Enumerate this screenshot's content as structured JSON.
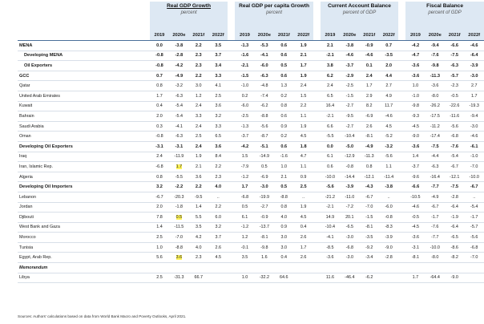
{
  "groups": [
    {
      "title": "Real GDP Growth",
      "subtitle": "percent"
    },
    {
      "title": "Real GDP per capita Growth",
      "subtitle": "percent"
    },
    {
      "title": "Current Account Balance",
      "subtitle": "percent of GDP"
    },
    {
      "title": "Fiscal Balance",
      "subtitle": "percent of GDP"
    }
  ],
  "years": [
    "2019",
    "2020e",
    "2021f",
    "2022f"
  ],
  "rows": [
    {
      "label": "MENA",
      "style": "bold",
      "cells": [
        "0.0",
        "-3.8",
        "2.2",
        "3.5",
        "-1.3",
        "-5.3",
        "0.6",
        "1.9",
        "2.1",
        "-3.8",
        "-0.9",
        "0.7",
        "-4.2",
        "-9.4",
        "-6.6",
        "-4.6"
      ]
    },
    {
      "label": "Developing MENA",
      "style": "bold-indent",
      "cells": [
        "-0.8",
        "-2.8",
        "2.3",
        "3.7",
        "-1.6",
        "-4.1",
        "0.6",
        "2.1",
        "-2.1",
        "-4.6",
        "-4.6",
        "-3.5",
        "-4.7",
        "-7.6",
        "-7.5",
        "-6.4"
      ]
    },
    {
      "label": "Oil Exporters",
      "style": "bold-indent",
      "cells": [
        "-0.8",
        "-4.2",
        "2.3",
        "3.4",
        "-2.1",
        "-6.0",
        "0.5",
        "1.7",
        "3.8",
        "-3.7",
        "0.1",
        "2.0",
        "-3.6",
        "-9.8",
        "-6.3",
        "-3.9"
      ]
    },
    {
      "label": "GCC",
      "style": "bold",
      "cells": [
        "0.7",
        "-4.9",
        "2.2",
        "3.3",
        "-1.5",
        "-6.3",
        "0.6",
        "1.9",
        "6.2",
        "-2.9",
        "2.4",
        "4.4",
        "-3.6",
        "-11.3",
        "-5.7",
        "-3.0"
      ]
    },
    {
      "label": "Qatar",
      "style": "",
      "cells": [
        "0.8",
        "-3.2",
        "3.0",
        "4.1",
        "-1.0",
        "-4.8",
        "1.3",
        "2.4",
        "2.4",
        "-2.5",
        "1.7",
        "2.7",
        "1.0",
        "-3.6",
        "-2.3",
        "2.7"
      ]
    },
    {
      "label": "United Arab Emirates",
      "style": "",
      "cells": [
        "1.7",
        "-6.3",
        "1.2",
        "2.5",
        "0.2",
        "-7.4",
        "0.2",
        "1.5",
        "6.5",
        "-1.5",
        "2.9",
        "4.9",
        "-1.0",
        "-8.0",
        "-0.5",
        "1.7"
      ]
    },
    {
      "label": "Kuwait",
      "style": "",
      "cells": [
        "0.4",
        "-5.4",
        "2.4",
        "3.6",
        "-6.0",
        "-6.2",
        "0.8",
        "2.2",
        "16.4",
        "-2.7",
        "8.2",
        "11.7",
        "-9.8",
        "-26.2",
        "-22.6",
        "-19.3"
      ]
    },
    {
      "label": "Bahrain",
      "style": "",
      "cells": [
        "2.0",
        "-5.4",
        "3.3",
        "3.2",
        "-2.5",
        "-8.8",
        "0.6",
        "1.1",
        "-2.1",
        "-9.5",
        "-6.9",
        "-4.6",
        "-9.3",
        "-17.5",
        "-11.6",
        "-9.4"
      ]
    },
    {
      "label": "Saudi Arabia",
      "style": "",
      "cells": [
        "0.3",
        "-4.1",
        "2.4",
        "3.3",
        "-1.3",
        "-5.6",
        "0.9",
        "1.9",
        "6.6",
        "-2.7",
        "2.6",
        "4.5",
        "-4.5",
        "-11.2",
        "-5.6",
        "-3.0"
      ]
    },
    {
      "label": "Oman",
      "style": "",
      "cells": [
        "-0.8",
        "-6.3",
        "2.5",
        "6.5",
        "-3.7",
        "-8.7",
        "0.2",
        "4.5",
        "-5.5",
        "-10.4",
        "-8.1",
        "-5.2",
        "-9.0",
        "-17.4",
        "-6.8",
        "-4.6"
      ]
    },
    {
      "label": "Developing Oil Exporters",
      "style": "bold",
      "cells": [
        "-3.1",
        "-3.1",
        "2.4",
        "3.6",
        "-4.2",
        "-5.1",
        "0.6",
        "1.8",
        "0.0",
        "-5.0",
        "-4.9",
        "-3.2",
        "-3.6",
        "-7.5",
        "-7.6",
        "-6.1"
      ]
    },
    {
      "label": "Iraq",
      "style": "",
      "cells": [
        "2.4",
        "-11.9",
        "1.9",
        "8.4",
        "1.5",
        "-14.9",
        "-1.6",
        "4.7",
        "6.1",
        "-12.9",
        "-11.3",
        "-5.6",
        "1.4",
        "-4.4",
        "-5.4",
        "-1.0"
      ]
    },
    {
      "label": "Iran, Islamic Rep.",
      "style": "",
      "cells": [
        "-6.8",
        "1.7",
        "2.1",
        "2.2",
        "-7.9",
        "0.5",
        "1.0",
        "1.1",
        "0.6",
        "-0.8",
        "0.8",
        "1.1",
        "-3.7",
        "-6.3",
        "-6.7",
        "-7.0"
      ]
    },
    {
      "label": "Algeria",
      "style": "",
      "cells": [
        "0.8",
        "-5.5",
        "3.6",
        "2.3",
        "-1.2",
        "-6.9",
        "2.1",
        "0.9",
        "-10.0",
        "-14.4",
        "-12.1",
        "-11.4",
        "-9.6",
        "-16.4",
        "-12.1",
        "-10.0"
      ]
    },
    {
      "label": "Developing Oil Importers",
      "style": "bold",
      "cells": [
        "3.2",
        "-2.2",
        "2.2",
        "4.0",
        "1.7",
        "-3.0",
        "0.5",
        "2.5",
        "-5.6",
        "-3.9",
        "-4.3",
        "-3.8",
        "-6.6",
        "-7.7",
        "-7.5",
        "-6.7"
      ]
    },
    {
      "label": "Lebanon",
      "style": "",
      "cells": [
        "-6.7",
        "-20.3",
        "-9.5",
        "..",
        "-6.8",
        "-19.9",
        "-8.8",
        "..",
        "-21.2",
        "-11.0",
        "-6.7",
        "..",
        "-10.5",
        "-4.9",
        "-2.8",
        ".."
      ]
    },
    {
      "label": "Jordan",
      "style": "",
      "cells": [
        "2.0",
        "-1.8",
        "1.4",
        "2.2",
        "0.5",
        "-2.7",
        "0.8",
        "1.9",
        "-2.1",
        "-7.2",
        "-7.0",
        "-6.0",
        "-4.6",
        "-6.7",
        "-6.4",
        "-5.4"
      ]
    },
    {
      "label": "Djibouti",
      "style": "",
      "cells": [
        "7.8",
        "0.5",
        "5.5",
        "6.0",
        "6.1",
        "-0.9",
        "4.0",
        "4.5",
        "14.9",
        "20.1",
        "-1.5",
        "-0.8",
        "-0.5",
        "-1.7",
        "-1.9",
        "-1.7"
      ]
    },
    {
      "label": "West Bank and Gaza",
      "style": "",
      "cells": [
        "1.4",
        "-11.5",
        "3.5",
        "3.2",
        "-1.2",
        "-13.7",
        "0.9",
        "0.4",
        "-10.4",
        "-6.5",
        "-8.1",
        "-8.3",
        "-4.5",
        "-7.6",
        "-6.4",
        "-5.7"
      ]
    },
    {
      "label": "Morocco",
      "style": "",
      "cells": [
        "2.5",
        "-7.0",
        "4.2",
        "3.7",
        "1.2",
        "-8.1",
        "3.0",
        "2.6",
        "-4.1",
        "-3.0",
        "-3.5",
        "-3.9",
        "-3.6",
        "-7.7",
        "-6.5",
        "-5.6"
      ]
    },
    {
      "label": "Tunisia",
      "style": "",
      "cells": [
        "1.0",
        "-8.8",
        "4.0",
        "2.6",
        "-0.1",
        "-9.8",
        "3.0",
        "1.7",
        "-8.5",
        "-6.8",
        "-9.2",
        "-9.0",
        "-3.1",
        "-10.0",
        "-8.6",
        "-6.8"
      ]
    },
    {
      "label": "Egypt, Arab Rep.",
      "style": "",
      "cells": [
        "5.6",
        "3.6",
        "2.3",
        "4.5",
        "3.5",
        "1.6",
        "0.4",
        "2.6",
        "-3.6",
        "-3.0",
        "-3.4",
        "-2.8",
        "-8.1",
        "-8.0",
        "-8.2",
        "-7.0"
      ]
    },
    {
      "label": "Memorandum",
      "style": "memo",
      "cells": [
        "",
        "",
        "",
        "",
        "",
        "",
        "",
        "",
        "",
        "",
        "",
        "",
        "",
        "",
        "",
        ""
      ]
    },
    {
      "label": "Libya",
      "style": "",
      "cells": [
        "2.5",
        "-31.3",
        "66.7",
        "",
        "1.0",
        "-32.2",
        "64.6",
        "",
        "11.6",
        "-46.4",
        "-6.2",
        "",
        "1.7",
        "-64.4",
        "-9.0",
        ""
      ]
    }
  ],
  "highlights": [
    [
      "Iran, Islamic Rep.",
      1
    ],
    [
      "Djibouti",
      1
    ],
    [
      "Egypt, Arab Rep.",
      1
    ]
  ],
  "notes": "Sources: Authors' calculations based on data from World Bank Macro and Poverty Outlooks, April 2021.",
  "colors": {
    "header_bg": "#dde8f3",
    "rule": "#4a6f99",
    "highlight": "#fff35a"
  }
}
